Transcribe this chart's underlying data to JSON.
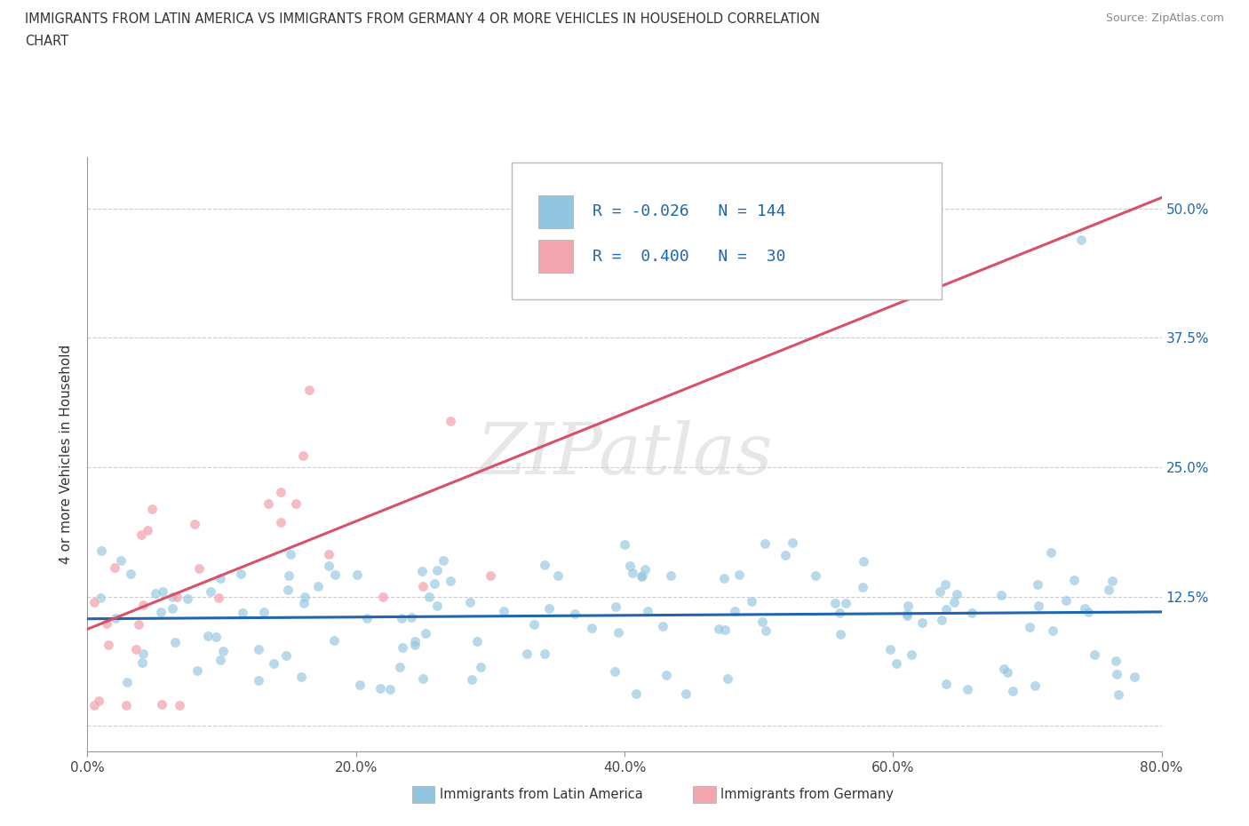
{
  "title_line1": "IMMIGRANTS FROM LATIN AMERICA VS IMMIGRANTS FROM GERMANY 4 OR MORE VEHICLES IN HOUSEHOLD CORRELATION",
  "title_line2": "CHART",
  "source_text": "Source: ZipAtlas.com",
  "ylabel": "4 or more Vehicles in Household",
  "legend_label1": "Immigrants from Latin America",
  "legend_label2": "Immigrants from Germany",
  "R1": -0.026,
  "N1": 144,
  "R2": 0.4,
  "N2": 30,
  "color_blue": "#92c5de",
  "color_blue_line": "#2166ac",
  "color_pink": "#f4a6b0",
  "color_pink_line": "#d6526a",
  "color_blue_text": "#2166ac",
  "xlim": [
    0.0,
    0.8
  ],
  "ylim": [
    -0.025,
    0.55
  ],
  "x_ticks": [
    0.0,
    0.2,
    0.4,
    0.6,
    0.8
  ],
  "x_tick_labels": [
    "0.0%",
    "20.0%",
    "40.0%",
    "60.0%",
    "80.0%"
  ],
  "y_ticks": [
    0.0,
    0.125,
    0.25,
    0.375,
    0.5
  ],
  "y_tick_labels_right": [
    "",
    "12.5%",
    "25.0%",
    "37.5%",
    "50.0%"
  ],
  "watermark_text": "ZIPatlas",
  "background_color": "#ffffff",
  "grid_color": "#cccccc"
}
